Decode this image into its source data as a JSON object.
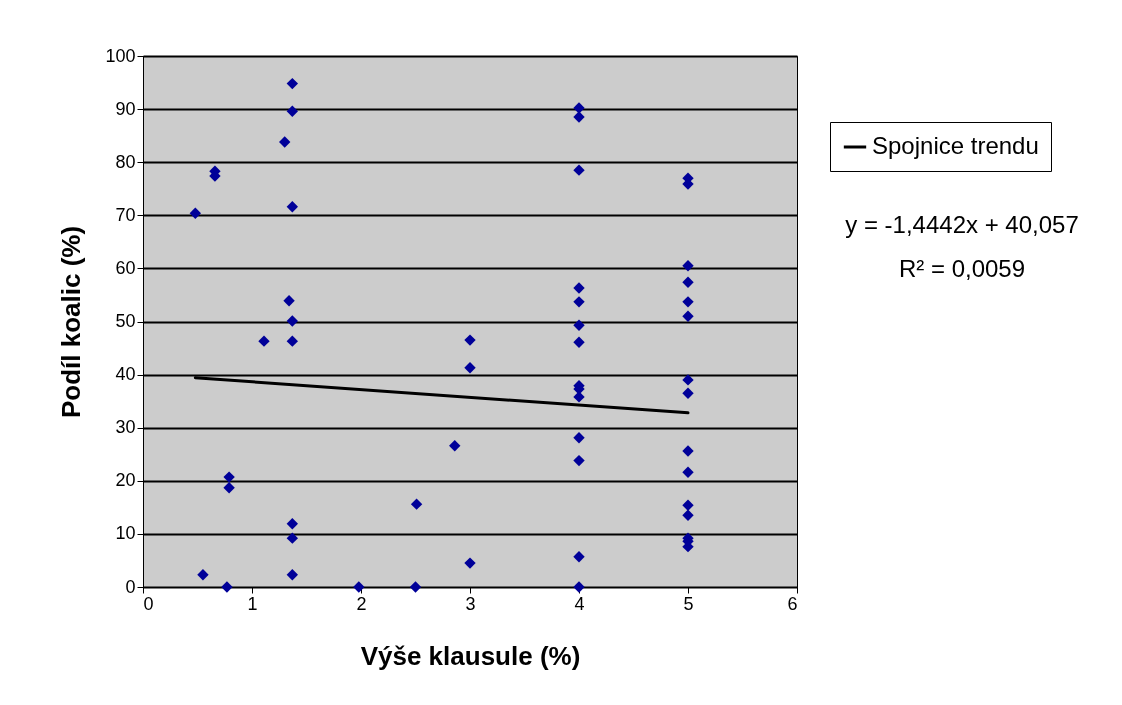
{
  "chart_data": {
    "type": "scatter",
    "xlabel": "Výše klausule (%)",
    "ylabel": "Podíl koalic (%)",
    "xlim": [
      0,
      6
    ],
    "xticks": [
      0,
      1,
      2,
      3,
      4,
      5,
      6
    ],
    "ylim": [
      0,
      100
    ],
    "yticks": [
      0,
      10,
      20,
      30,
      40,
      50,
      60,
      70,
      80,
      90,
      100
    ],
    "grid": "y",
    "legend": "right",
    "series": [
      {
        "type": "scatter",
        "marker": "diamond",
        "color": "#000099",
        "x": [
          0.48,
          0.66,
          0.66,
          0.55,
          0.77,
          0.79,
          0.79,
          1.11,
          1.3,
          1.37,
          1.37,
          1.37,
          1.34,
          1.37,
          1.37,
          1.37,
          1.37,
          1.37,
          1.98,
          2.51,
          2.5,
          2.86,
          3,
          3,
          3,
          4,
          4,
          4,
          4,
          4,
          4,
          4,
          4,
          4,
          4,
          4,
          4,
          4,
          4,
          5,
          5,
          5,
          5,
          5,
          5,
          5,
          5,
          5,
          5,
          5,
          5,
          5,
          5,
          5
        ],
        "values": [
          70.4,
          78.3,
          77.4,
          2.3,
          0,
          20.7,
          18.7,
          46.3,
          83.8,
          94.8,
          89.6,
          71.6,
          53.9,
          50.1,
          46.3,
          11.9,
          9.2,
          2.3,
          0,
          15.6,
          0,
          26.6,
          46.5,
          41.3,
          4.5,
          90.2,
          88.5,
          78.5,
          56.3,
          53.7,
          49.3,
          46.1,
          37.9,
          37.3,
          35.8,
          28.1,
          23.8,
          5.7,
          0,
          77,
          75.9,
          60.5,
          57.4,
          53.7,
          51,
          39,
          36.5,
          25.6,
          21.6,
          15.4,
          13.5,
          9.2,
          8.6,
          7.6
        ]
      },
      {
        "type": "line",
        "marker": "none",
        "line_style": "solid",
        "name": "Spojnice trendu",
        "color": "#000000",
        "x": [
          0.48,
          5
        ],
        "values": [
          39.4,
          32.8
        ]
      }
    ],
    "annotations": [
      "y = -1,4442x + 40,057",
      "R² = 0,0059"
    ]
  }
}
